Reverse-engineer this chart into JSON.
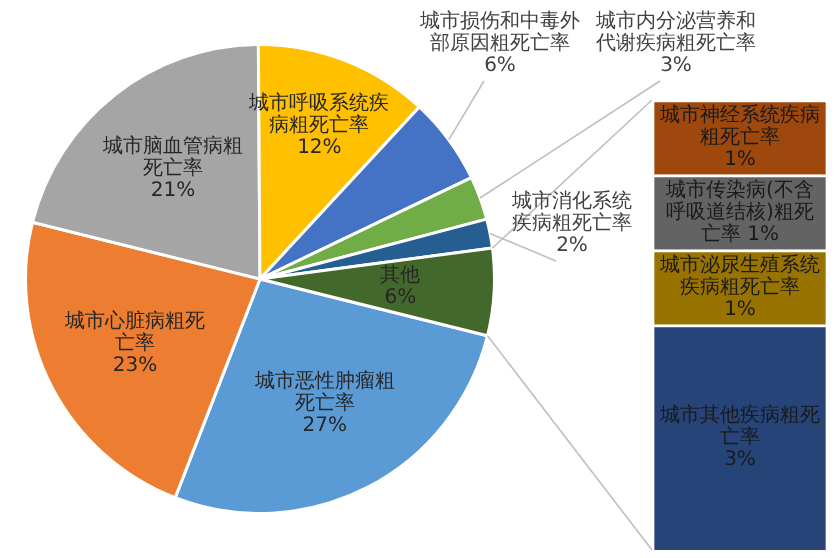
{
  "chart_data": [
    {
      "type": "pie",
      "categories": [
        "城市恶性肿瘤粗死亡率",
        "城市心脏病粗死亡率",
        "城市脑血管病粗死亡率",
        "城市呼吸系统疾病粗死亡率",
        "城市损伤和中毒外部原因粗死亡率",
        "城市内分泌营养和代谢疾病粗死亡率",
        "城市消化系统疾病粗死亡率",
        "其他"
      ],
      "values": [
        27,
        23,
        21,
        12,
        6,
        3,
        2,
        6
      ],
      "value_labels": [
        "27%",
        "23%",
        "21%",
        "12%",
        "6%",
        "3%",
        "2%",
        "6%"
      ],
      "colors": [
        "#5b9bd5",
        "#ed7d31",
        "#a5a5a5",
        "#ffc000",
        "#4472c4",
        "#70ad47",
        "#255e91",
        "#43682b"
      ]
    },
    {
      "type": "bar",
      "stacked": true,
      "categories": [
        null
      ],
      "series": [
        {
          "name": "城市其他疾病粗死亡率",
          "color": "#264478",
          "values": [
            3
          ],
          "value_labels": [
            "3%"
          ]
        },
        {
          "name": "城市泌尿生殖系统疾病粗死亡率",
          "color": "#997300",
          "values": [
            1
          ],
          "value_labels": [
            "1%"
          ]
        },
        {
          "name": "城市传染病(不含呼吸道结核)粗死亡率",
          "color": "#636363",
          "values": [
            1
          ],
          "value_labels": [
            "1%"
          ]
        },
        {
          "name": "城市神经系统疾病粗死亡率",
          "color": "#9e480e",
          "values": [
            1
          ],
          "value_labels": [
            "1%"
          ]
        }
      ]
    }
  ]
}
